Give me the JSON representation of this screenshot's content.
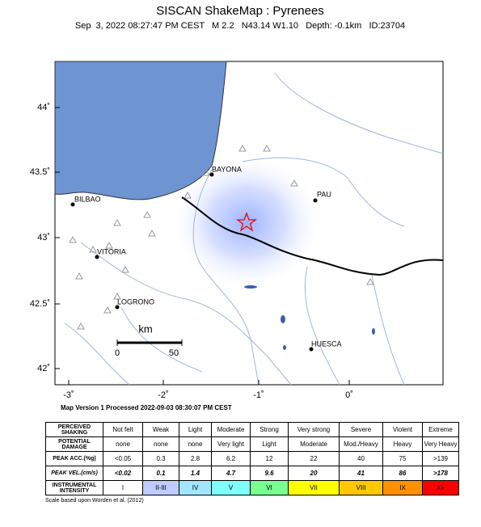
{
  "header": {
    "title": "SISCAN ShakeMap : Pyrenees",
    "subtitle": "Sep  3, 2022 08:27:47 PM CEST   M 2.2   N43.14 W1.10   Depth: -0.1km   ID:23704"
  },
  "map": {
    "lat_labels": [
      "44˚",
      "43.5˚",
      "43˚",
      "42.5˚",
      "42˚"
    ],
    "lon_labels": [
      "-3˚",
      "-2˚",
      "-1˚",
      "0˚"
    ],
    "cities": [
      "BAYONA",
      "PAU",
      "BILBAO",
      "VITORIA",
      "LOGRONO",
      "HUESCA"
    ],
    "scale": {
      "unit": "km",
      "start": "0",
      "end": "50"
    },
    "processed": "Map Version 1 Processed 2022-09-03 08:30:07 PM CEST"
  },
  "legend": {
    "rows": [
      {
        "label": "PERCEIVED SHAKING",
        "cells": [
          "Not felt",
          "Weak",
          "Light",
          "Moderate",
          "Strong",
          "Very strong",
          "Severe",
          "Violent",
          "Extreme"
        ]
      },
      {
        "label": "POTENTIAL DAMAGE",
        "cells": [
          "none",
          "none",
          "none",
          "Very light",
          "Light",
          "Moderate",
          "Mod./Heavy",
          "Heavy",
          "Very Heavy"
        ]
      },
      {
        "label": "PEAK ACC.(%g)",
        "cells": [
          "<0.05",
          "0.3",
          "2.8",
          "6.2",
          "12",
          "22",
          "40",
          "75",
          ">139"
        ]
      },
      {
        "label": "PEAK VEL.(cm/s)",
        "cells": [
          "<0.02",
          "0.1",
          "1.4",
          "4.7",
          "9.6",
          "20",
          "41",
          "86",
          ">178"
        ]
      },
      {
        "label": "INSTRUMENTAL INTENSITY",
        "cells": [
          "I",
          "II-III",
          "IV",
          "V",
          "VI",
          "VII",
          "VIII",
          "IX",
          "X+"
        ]
      }
    ]
  },
  "footnote": "Scale based upon Worden et al. (2012)"
}
